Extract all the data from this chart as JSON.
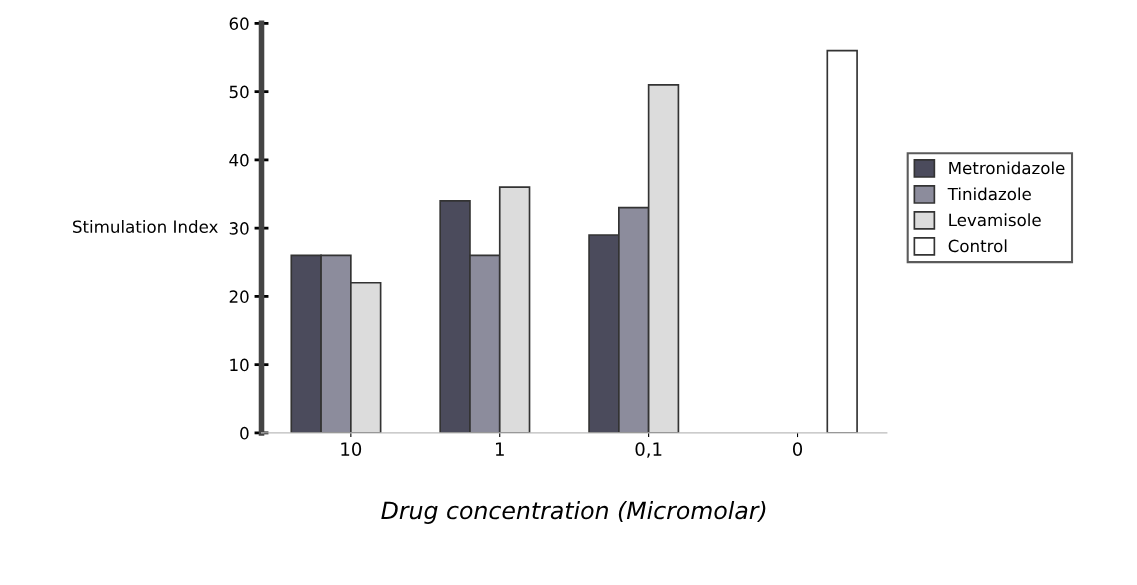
{
  "chart_data": {
    "type": "bar",
    "ylabel": "Stimulation Index",
    "xlabel": "Drug concentration (Micromolar)",
    "categories": [
      "10",
      "1",
      "0,1",
      "0"
    ],
    "series": [
      {
        "name": "Metronidazole",
        "color": "#4b4b5c",
        "values": [
          26,
          34,
          29,
          null
        ]
      },
      {
        "name": "Tinidazole",
        "color": "#8c8c9c",
        "values": [
          26,
          26,
          33,
          null
        ]
      },
      {
        "name": "Levamisole",
        "color": "#dcdcdc",
        "values": [
          22,
          36,
          51,
          null
        ]
      },
      {
        "name": "Control",
        "color": "#ffffff",
        "values": [
          null,
          null,
          null,
          56
        ]
      }
    ],
    "ylim": [
      0,
      60
    ],
    "yticks": [
      0,
      10,
      20,
      30,
      40,
      50,
      60
    ],
    "grid": false,
    "legend": "right"
  }
}
